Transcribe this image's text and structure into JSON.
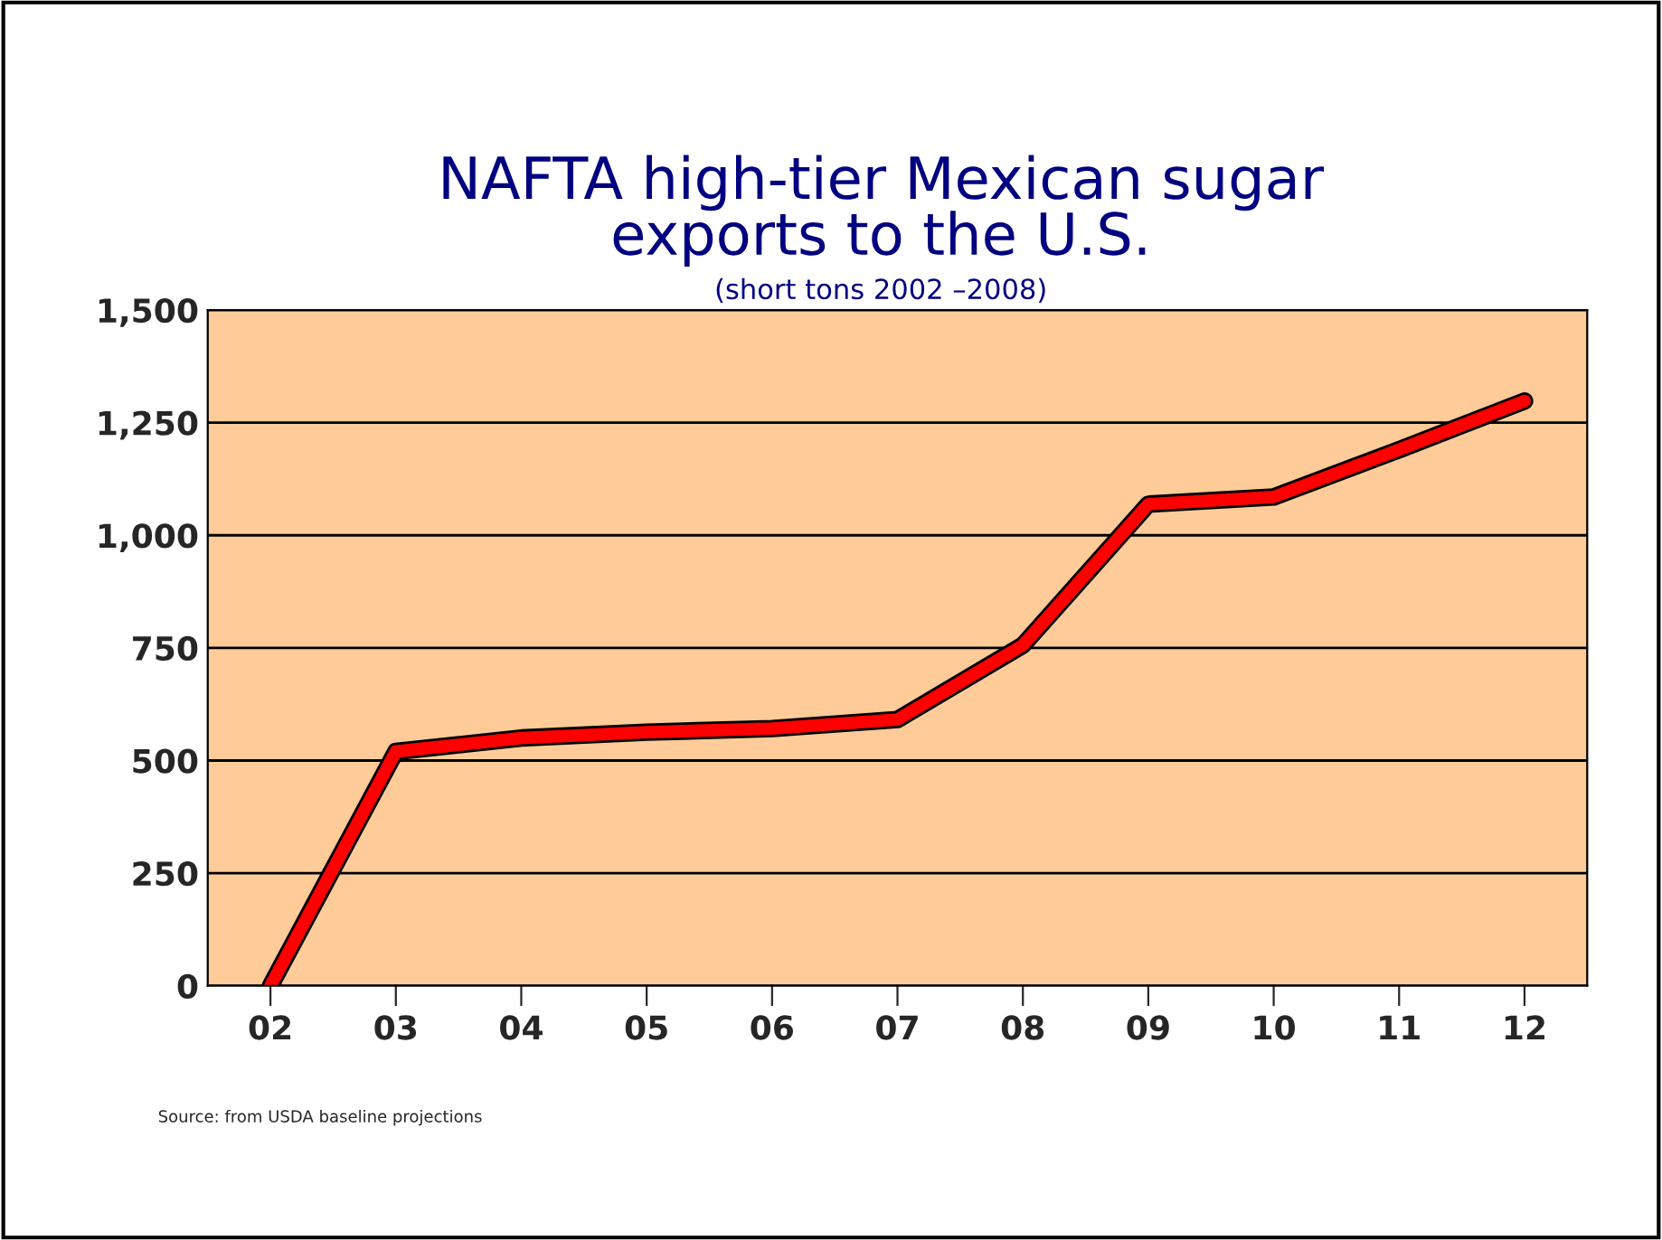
{
  "chart_data": {
    "type": "line",
    "title": "NAFTA high-tier Mexican sugar\nexports to the U.S.",
    "subtitle": "(short tons 2002 –2008)",
    "categories": [
      "02",
      "03",
      "04",
      "05",
      "06",
      "07",
      "08",
      "09",
      "10",
      "11",
      "12"
    ],
    "series": [
      {
        "color": "#ff0000",
        "values": [
          0,
          520,
          550,
          563,
          571,
          591,
          756,
          1069,
          1085,
          1190,
          1298
        ]
      }
    ],
    "ylim": [
      0,
      1500
    ],
    "yticks": [
      0,
      250,
      500,
      750,
      {
        "value": 1000,
        "label": "1,000"
      },
      {
        "value": 1250,
        "label": "1,250"
      },
      {
        "value": 1500,
        "label": "1,500"
      }
    ],
    "grid": "y",
    "marker": "none",
    "line_style": "solid",
    "annotations": [
      "Source: from USDA baseline projections"
    ]
  }
}
